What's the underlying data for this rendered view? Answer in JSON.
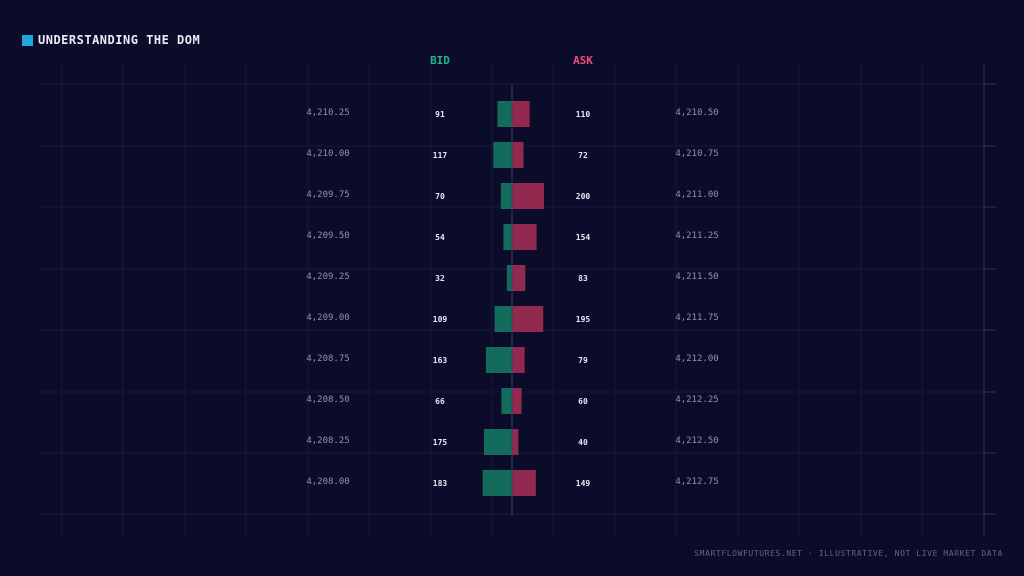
{
  "title": "UNDERSTANDING THE DOM",
  "footer": "SMARTFLOWFUTURES.NET · ILLUSTRATIVE, NOT LIVE MARKET DATA",
  "colors": {
    "background": "#0b0c2a",
    "bid": "#136b5c",
    "ask": "#92294f",
    "bid_label": "#22b487",
    "ask_label": "#ef4f7e",
    "accent": "#1fa8d8"
  },
  "chart_data": {
    "type": "bar",
    "orientation": "horizontal-diverging",
    "bid_label": "BID",
    "ask_label": "ASK",
    "rows": [
      {
        "bid_price": "4,210.25",
        "bid_size": 91,
        "ask_size": 110,
        "ask_price": "4,210.50"
      },
      {
        "bid_price": "4,210.00",
        "bid_size": 117,
        "ask_size": 72,
        "ask_price": "4,210.75"
      },
      {
        "bid_price": "4,209.75",
        "bid_size": 70,
        "ask_size": 200,
        "ask_price": "4,211.00"
      },
      {
        "bid_price": "4,209.50",
        "bid_size": 54,
        "ask_size": 154,
        "ask_price": "4,211.25"
      },
      {
        "bid_price": "4,209.25",
        "bid_size": 32,
        "ask_size": 83,
        "ask_price": "4,211.50"
      },
      {
        "bid_price": "4,209.00",
        "bid_size": 109,
        "ask_size": 195,
        "ask_price": "4,211.75"
      },
      {
        "bid_price": "4,208.75",
        "bid_size": 163,
        "ask_size": 79,
        "ask_price": "4,212.00"
      },
      {
        "bid_price": "4,208.50",
        "bid_size": 66,
        "ask_size": 60,
        "ask_price": "4,212.25"
      },
      {
        "bid_price": "4,208.25",
        "bid_size": 175,
        "ask_size": 40,
        "ask_price": "4,212.50"
      },
      {
        "bid_price": "4,208.00",
        "bid_size": 183,
        "ask_size": 149,
        "ask_price": "4,212.75"
      }
    ]
  }
}
